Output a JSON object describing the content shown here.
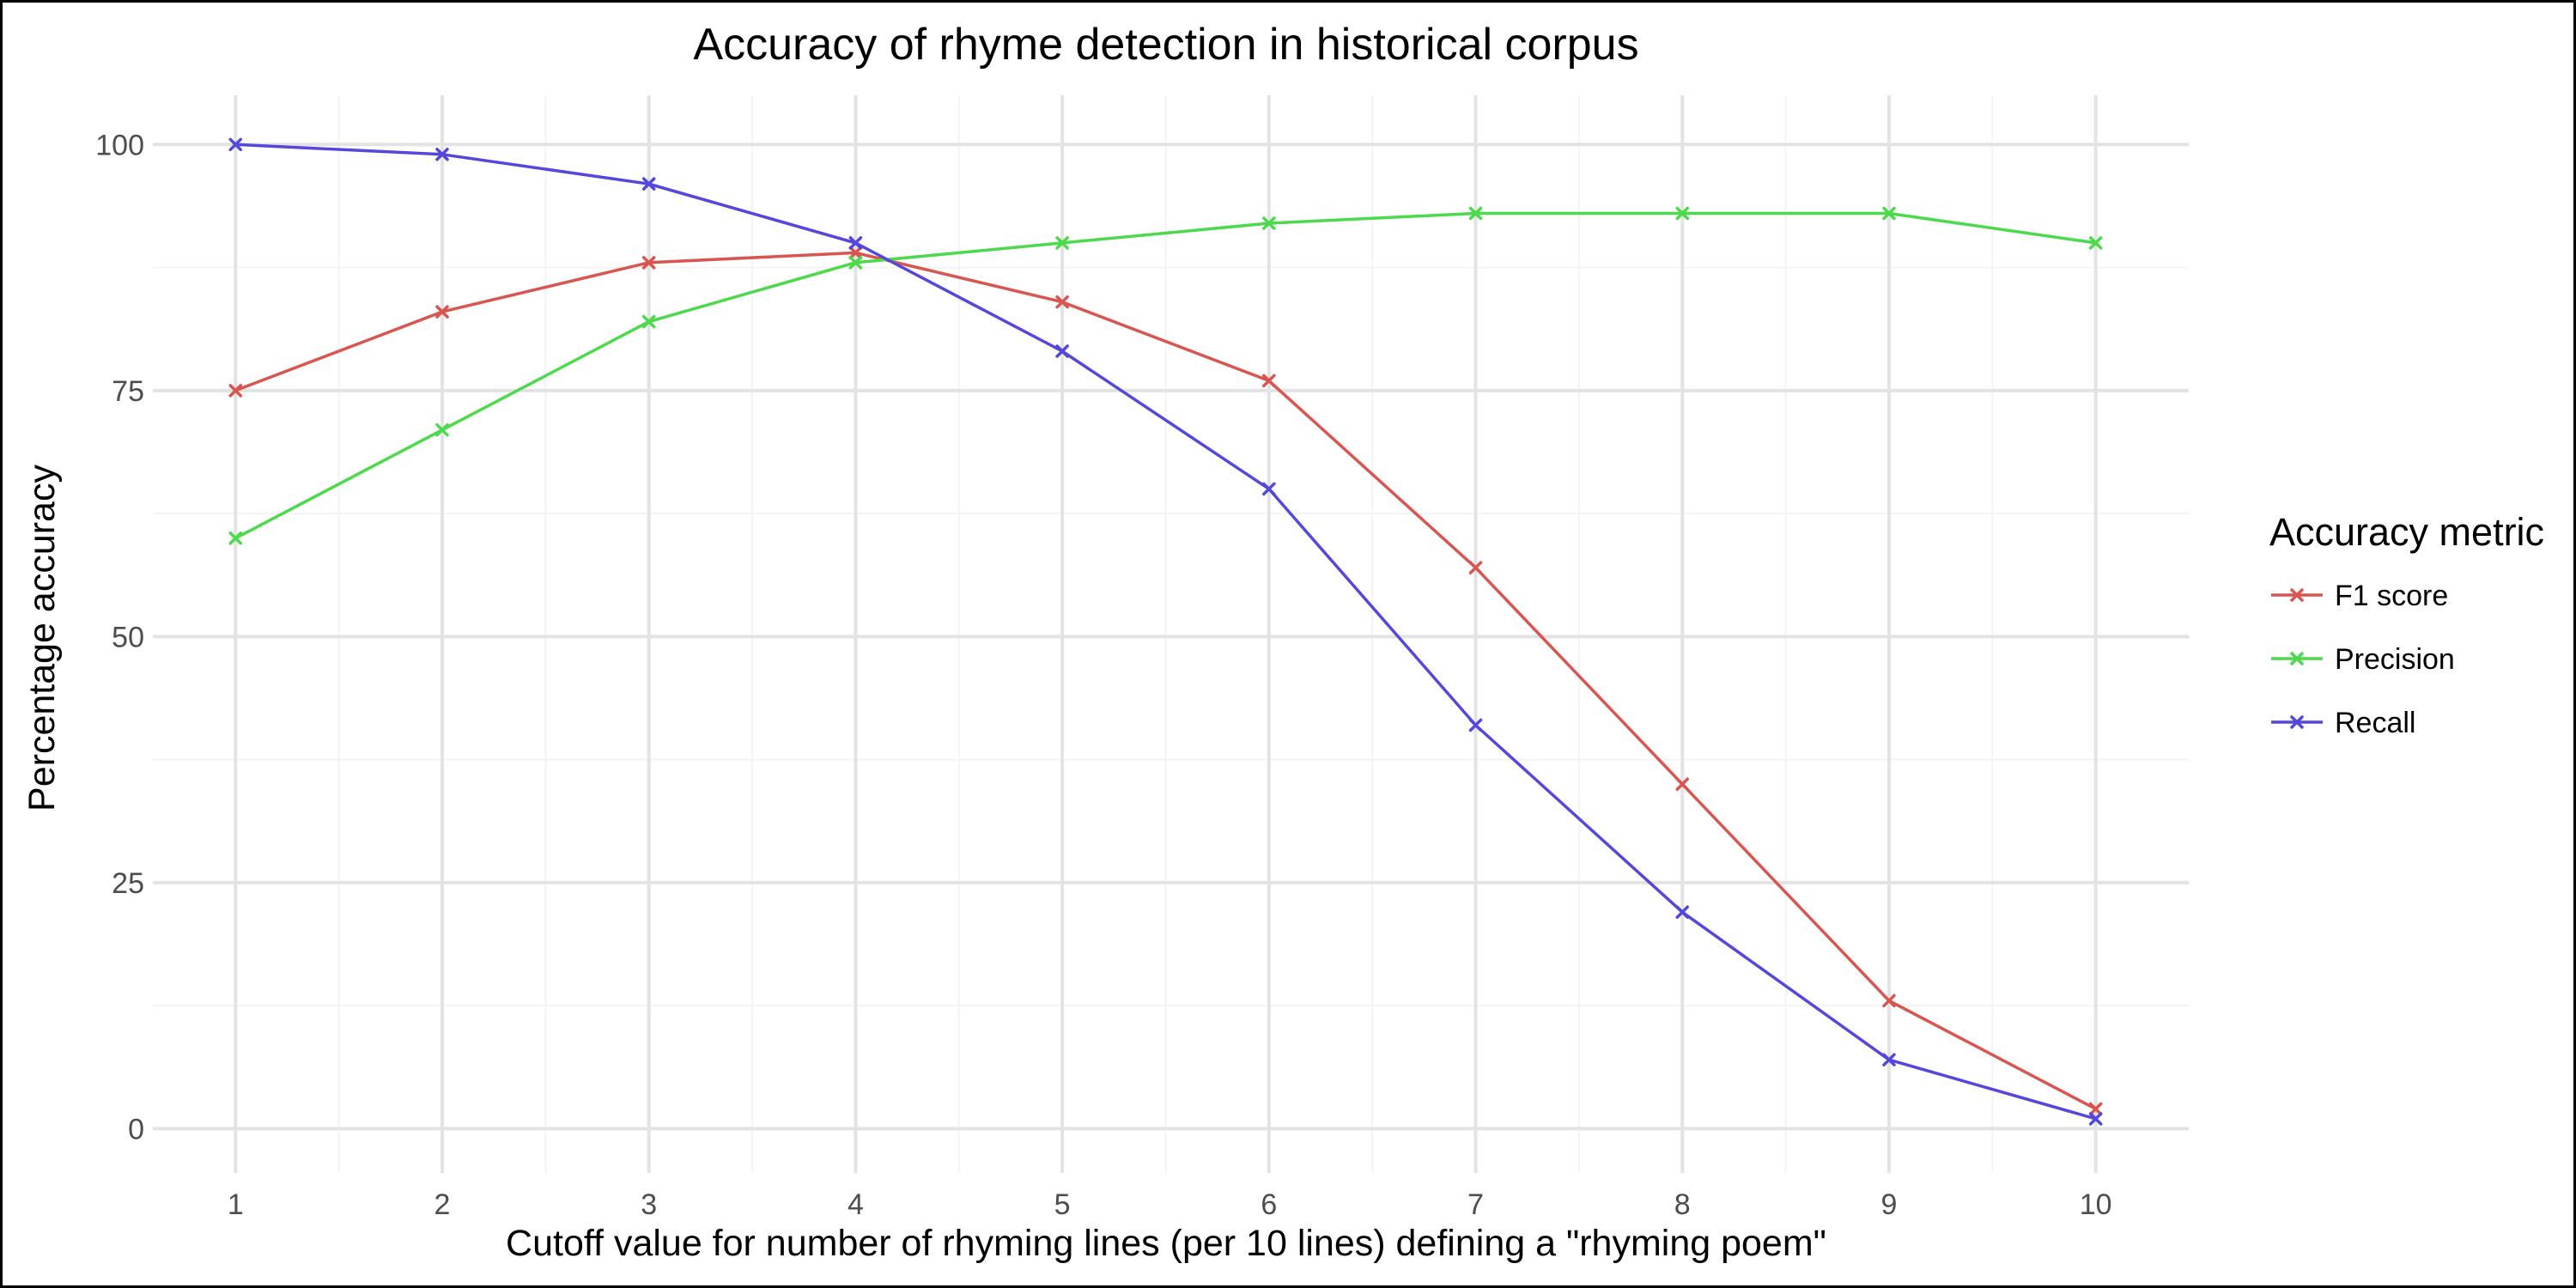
{
  "chart_data": {
    "type": "line",
    "title": "Accuracy of rhyme detection in historical corpus",
    "xlabel": "Cutoff value for number of rhyming lines (per 10 lines) defining a \"rhyming poem\"",
    "ylabel": "Percentage accuracy",
    "x": [
      1,
      2,
      3,
      4,
      5,
      6,
      7,
      8,
      9,
      10
    ],
    "xlim": [
      0.6,
      10.45
    ],
    "ylim": [
      -4.5,
      105
    ],
    "x_ticks": [
      1,
      2,
      3,
      4,
      5,
      6,
      7,
      8,
      9,
      10
    ],
    "y_ticks": [
      0,
      25,
      50,
      75,
      100
    ],
    "grid": true,
    "legend": {
      "title": "Accuracy metric",
      "placement": "right"
    },
    "marker": "x",
    "series": [
      {
        "name": "F1 score",
        "color": "#d95550",
        "values": [
          75,
          83,
          88,
          89,
          84,
          76,
          57,
          35,
          13,
          2
        ]
      },
      {
        "name": "Precision",
        "color": "#4cd94c",
        "values": [
          60,
          71,
          82,
          88,
          90,
          92,
          93,
          93,
          93,
          90
        ]
      },
      {
        "name": "Recall",
        "color": "#5447db",
        "values": [
          100,
          99,
          96,
          90,
          79,
          65,
          41,
          22,
          7,
          1
        ]
      }
    ]
  }
}
